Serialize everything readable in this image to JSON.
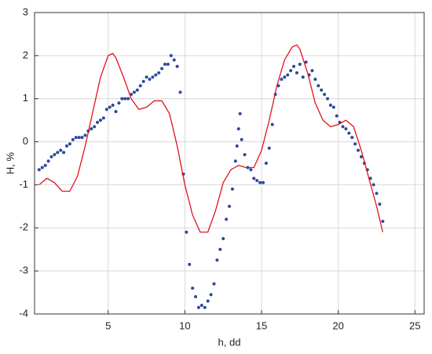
{
  "chart_data": {
    "type": "scatter",
    "x_label": "h, dd",
    "y_label": "H, %",
    "xlim": [
      0.2,
      25.6
    ],
    "ylim": [
      -4,
      3
    ],
    "xticks": [
      5,
      10,
      15,
      20,
      25
    ],
    "yticks": [
      -4,
      -3,
      -2,
      -1,
      0,
      1,
      2,
      3
    ],
    "grid": true,
    "series": [
      {
        "type": "scatter",
        "color": "#2b4a9c",
        "x": [
          0.5,
          0.7,
          0.9,
          1.1,
          1.3,
          1.5,
          1.7,
          1.9,
          2.1,
          2.3,
          2.5,
          2.7,
          2.9,
          3.1,
          3.3,
          3.5,
          3.7,
          3.9,
          4.1,
          4.3,
          4.5,
          4.7,
          4.9,
          5.1,
          5.3,
          5.5,
          5.7,
          5.9,
          6.1,
          6.3,
          6.5,
          6.7,
          6.9,
          7.1,
          7.3,
          7.5,
          7.7,
          7.9,
          8.1,
          8.3,
          8.5,
          8.7,
          8.9,
          9.1,
          9.3,
          9.5,
          9.7,
          9.9,
          10.1,
          10.3,
          10.5,
          10.7,
          10.9,
          11.1,
          11.3,
          11.5,
          11.7,
          11.9,
          12.1,
          12.3,
          12.5,
          12.7,
          12.9,
          13.1,
          13.3,
          13.4,
          13.5,
          13.6,
          13.7,
          13.9,
          14.1,
          14.3,
          14.5,
          14.7,
          14.9,
          15.1,
          15.3,
          15.5,
          15.7,
          15.9,
          16.1,
          16.3,
          16.5,
          16.7,
          16.9,
          17.1,
          17.3,
          17.5,
          17.7,
          17.9,
          18.1,
          18.3,
          18.5,
          18.7,
          18.9,
          19.1,
          19.3,
          19.5,
          19.7,
          19.9,
          20.1,
          20.3,
          20.5,
          20.7,
          20.9,
          21.1,
          21.3,
          21.5,
          21.7,
          21.9,
          22.1,
          22.3,
          22.5,
          22.7,
          22.9
        ],
        "values": [
          -0.65,
          -0.6,
          -0.55,
          -0.45,
          -0.35,
          -0.3,
          -0.25,
          -0.2,
          -0.25,
          -0.1,
          -0.05,
          0.05,
          0.1,
          0.1,
          0.1,
          0.15,
          0.25,
          0.3,
          0.35,
          0.45,
          0.5,
          0.55,
          0.75,
          0.8,
          0.85,
          0.7,
          0.9,
          1.0,
          1.0,
          1.0,
          1.1,
          1.15,
          1.2,
          1.3,
          1.4,
          1.5,
          1.45,
          1.5,
          1.55,
          1.6,
          1.7,
          1.8,
          1.8,
          2.0,
          1.9,
          1.75,
          1.15,
          -0.75,
          -2.1,
          -2.85,
          -3.4,
          -3.6,
          -3.85,
          -3.8,
          -3.85,
          -3.7,
          -3.55,
          -3.3,
          -2.75,
          -2.5,
          -2.25,
          -1.8,
          -1.5,
          -1.1,
          -0.45,
          -0.1,
          0.3,
          0.65,
          0.05,
          -0.3,
          -0.6,
          -0.65,
          -0.85,
          -0.9,
          -0.95,
          -0.95,
          -0.5,
          -0.15,
          0.4,
          1.1,
          1.3,
          1.45,
          1.5,
          1.55,
          1.65,
          1.75,
          1.6,
          1.8,
          1.5,
          1.85,
          1.55,
          1.65,
          1.45,
          1.3,
          1.2,
          1.1,
          1.0,
          0.85,
          0.8,
          0.6,
          0.45,
          0.35,
          0.3,
          0.2,
          0.1,
          -0.05,
          -0.2,
          -0.35,
          -0.5,
          -0.65,
          -0.85,
          -1.0,
          -1.2,
          -1.45,
          -1.85
        ]
      },
      {
        "type": "line",
        "color": "#e3121c",
        "x": [
          0.5,
          1.0,
          1.5,
          2.0,
          2.5,
          3.0,
          3.5,
          4.0,
          4.5,
          5.0,
          5.3,
          5.5,
          6.0,
          6.5,
          7.0,
          7.5,
          8.0,
          8.5,
          9.0,
          9.5,
          10.0,
          10.5,
          11.0,
          11.5,
          12.0,
          12.5,
          13.0,
          13.5,
          14.0,
          14.5,
          15.0,
          15.5,
          16.0,
          16.5,
          17.0,
          17.3,
          17.5,
          18.0,
          18.5,
          19.0,
          19.5,
          20.0,
          20.5,
          21.0,
          21.5,
          22.0,
          22.5,
          22.9
        ],
        "values": [
          -1.0,
          -0.85,
          -0.95,
          -1.15,
          -1.15,
          -0.8,
          -0.1,
          0.7,
          1.5,
          2.0,
          2.05,
          1.95,
          1.5,
          1.0,
          0.75,
          0.8,
          0.95,
          0.95,
          0.65,
          -0.1,
          -1.0,
          -1.7,
          -2.1,
          -2.1,
          -1.6,
          -0.95,
          -0.65,
          -0.55,
          -0.6,
          -0.6,
          -0.2,
          0.5,
          1.3,
          1.9,
          2.2,
          2.25,
          2.15,
          1.6,
          0.9,
          0.5,
          0.35,
          0.4,
          0.5,
          0.35,
          -0.2,
          -0.85,
          -1.5,
          -2.1
        ]
      }
    ]
  }
}
